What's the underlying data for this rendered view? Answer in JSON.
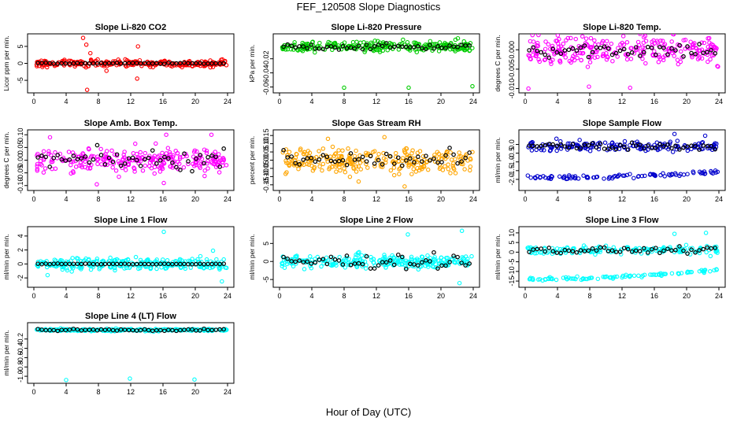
{
  "title": "FEF_120508  Slope Diagnostics",
  "xlabel": "Hour of Day (UTC)",
  "chart_data": [
    {
      "type": "scatter",
      "title": "Slope Li-820 CO2",
      "ylabel": "Licor ppm per min.",
      "xlim": [
        0,
        24
      ],
      "xticks": [
        "0",
        "4",
        "8",
        "12",
        "16",
        "20",
        "24"
      ],
      "ylim": [
        -8,
        8
      ],
      "yticks": [
        -5,
        0,
        5
      ],
      "ytick_labels": [
        "-5",
        "0",
        "5"
      ],
      "color": "#ff0000",
      "spread": 1.0,
      "outliers": [
        [
          6.1,
          7.5
        ],
        [
          6.5,
          5.5
        ],
        [
          7.0,
          3.0
        ],
        [
          12.9,
          5.0
        ],
        [
          6.6,
          -7.8
        ],
        [
          12.8,
          -4.5
        ],
        [
          9.0,
          -2.2
        ]
      ],
      "ref_level": 0,
      "ref_spread": 0.15
    },
    {
      "type": "scatter",
      "title": "Slope Li-820 Pressure",
      "ylabel": "kPa per min.",
      "xlim": [
        0,
        24
      ],
      "xticks": [
        "0",
        "4",
        "8",
        "12",
        "16",
        "20",
        "24"
      ],
      "ylim": [
        -0.065,
        0.012
      ],
      "yticks": [
        -0.06,
        -0.04,
        -0.02
      ],
      "ytick_labels": [
        "-0.06",
        "-0.04",
        "-0.02"
      ],
      "color": "#00cc00",
      "spread": 0.007,
      "outliers": [
        [
          8.0,
          -0.061
        ],
        [
          16.0,
          -0.061
        ],
        [
          23.9,
          -0.059
        ],
        [
          15.3,
          0.007
        ],
        [
          22.1,
          0.009
        ],
        [
          21.8,
          0.007
        ]
      ],
      "ref_level": -0.003,
      "ref_spread": 0.004
    },
    {
      "type": "scatter",
      "title": "Slope Li-820 Temp.",
      "ylabel": "degrees C per min.",
      "xlim": [
        0,
        24
      ],
      "xticks": [
        "0",
        "4",
        "8",
        "12",
        "16",
        "20",
        "24"
      ],
      "ylim": [
        -0.0105,
        0.0035
      ],
      "yticks": [
        -0.01,
        -0.005,
        0.0
      ],
      "ytick_labels": [
        "-0.010",
        "-0.005",
        "0.000"
      ],
      "color": "#ff00ff",
      "spread": 0.0035,
      "outliers": [
        [
          0.4,
          -0.01
        ],
        [
          7.9,
          -0.0095
        ],
        [
          13.0,
          -0.0098
        ],
        [
          5.3,
          0.003
        ],
        [
          22.8,
          0.003
        ]
      ],
      "ref_level": 0,
      "ref_spread": 0.002
    },
    {
      "type": "scatter",
      "title": "Slope Amb. Box Temp.",
      "ylabel": "degrees C per min.",
      "xlim": [
        0,
        24
      ],
      "xticks": [
        "0",
        "4",
        "8",
        "12",
        "16",
        "20",
        "24"
      ],
      "ylim": [
        -0.11,
        0.11
      ],
      "yticks": [
        -0.1,
        -0.05,
        0.0,
        0.05,
        0.1
      ],
      "ytick_labels": [
        "-0.10",
        "-0.05",
        "0.00",
        "0.05",
        "0.10"
      ],
      "color": "#ff00ff",
      "spread": 0.05,
      "outliers": [
        [
          7.8,
          -0.095
        ],
        [
          16.1,
          -0.09
        ],
        [
          22.0,
          0.1
        ],
        [
          16.4,
          0.1
        ],
        [
          2.0,
          0.09
        ]
      ],
      "ref_level": 0,
      "ref_spread": 0.04
    },
    {
      "type": "scatter",
      "title": "Slope Gas Stream RH",
      "ylabel": "percent per min.",
      "xlim": [
        0,
        24
      ],
      "xticks": [
        "0",
        "4",
        "8",
        "12",
        "16",
        "20",
        "24"
      ],
      "ylim": [
        -0.17,
        0.17
      ],
      "yticks": [
        -0.15,
        -0.1,
        -0.05,
        0.0,
        0.05,
        0.1,
        0.15
      ],
      "ytick_labels": [
        "-0.15",
        "-0.10",
        "-0.05",
        "0.00",
        "0.05",
        "0.10",
        "0.15"
      ],
      "color": "#ffa500",
      "spread": 0.07,
      "outliers": [
        [
          15.5,
          -0.16
        ],
        [
          6.0,
          0.13
        ],
        [
          13.0,
          0.14
        ],
        [
          9.8,
          -0.13
        ]
      ],
      "ref_level": 0,
      "ref_spread": 0.06
    },
    {
      "type": "scatter",
      "title": "Slope Sample Flow",
      "ylabel": "ml/min per min.",
      "xlim": [
        0,
        24
      ],
      "xticks": [
        "0",
        "4",
        "8",
        "12",
        "16",
        "20",
        "24"
      ],
      "ylim": [
        -2.5,
        0.7
      ],
      "yticks": [
        -2.0,
        -1.5,
        -1.0,
        -0.5,
        0.0
      ],
      "ytick_labels": [
        "-2.0",
        "-1.5",
        "-1.0",
        "-0.5",
        "0.0"
      ],
      "color": "#0000cc",
      "spread": 0.3,
      "band_level": -1.9,
      "band_to": -1.6,
      "outliers": [
        [
          18.5,
          0.6
        ],
        [
          22.3,
          0.5
        ]
      ],
      "ref_level": -0.1,
      "ref_spread": 0.2
    },
    {
      "type": "scatter",
      "title": "Slope Line 1 Flow",
      "ylabel": "ml/min per min.",
      "xlim": [
        0,
        24
      ],
      "xticks": [
        "0",
        "4",
        "8",
        "12",
        "16",
        "20",
        "24"
      ],
      "ylim": [
        -3,
        5
      ],
      "yticks": [
        -2,
        0,
        2,
        4
      ],
      "ytick_labels": [
        "-2",
        "0",
        "2",
        "4"
      ],
      "color": "#00ffff",
      "spread": 0.8,
      "outliers": [
        [
          16.1,
          4.6
        ],
        [
          23.3,
          -2.5
        ],
        [
          1.7,
          -1.6
        ],
        [
          22.2,
          1.9
        ]
      ],
      "ref_level": 0,
      "ref_spread": 0.05
    },
    {
      "type": "scatter",
      "title": "Slope Line 2 Flow",
      "ylabel": "ml/min per min.",
      "xlim": [
        0,
        24
      ],
      "xticks": [
        "0",
        "4",
        "8",
        "12",
        "16",
        "20",
        "24"
      ],
      "ylim": [
        -6.5,
        9
      ],
      "yticks": [
        -5,
        0,
        5
      ],
      "ytick_labels": [
        "-5",
        "0",
        "5"
      ],
      "color": "#00ffff",
      "spread": 1.8,
      "outliers": [
        [
          22.6,
          8.5
        ],
        [
          15.9,
          7.5
        ],
        [
          22.3,
          -6.0
        ]
      ],
      "ref_level": 0,
      "ref_spread": 2.0
    },
    {
      "type": "scatter",
      "title": "Slope Line 3 Flow",
      "ylabel": "ml/min per min.",
      "xlim": [
        0,
        24
      ],
      "xticks": [
        "0",
        "4",
        "8",
        "12",
        "16",
        "20",
        "24"
      ],
      "ylim": [
        -17,
        12
      ],
      "yticks": [
        -15,
        -10,
        -5,
        0,
        5,
        10
      ],
      "ytick_labels": [
        "-15",
        "-10",
        "-5",
        "0",
        "5",
        "10"
      ],
      "color": "#00ffff",
      "spread": 2.0,
      "band_level": -14,
      "band_to": -9,
      "outliers": [
        [
          22.4,
          10
        ],
        [
          18.5,
          9.5
        ]
      ],
      "ref_level": 1,
      "ref_spread": 1.5
    },
    {
      "type": "scatter",
      "title": "Slope Line 4 (LT) Flow",
      "ylabel": "ml/min per min.",
      "xlim": [
        0,
        24
      ],
      "xticks": [
        "0",
        "4",
        "8",
        "12",
        "16",
        "20",
        "24"
      ],
      "ylim": [
        -1.1,
        0.1
      ],
      "yticks": [
        -1.0,
        -0.8,
        -0.6,
        -0.4,
        -0.2
      ],
      "ytick_labels": [
        "-1.0",
        "-0.8",
        "-0.6",
        "-0.4",
        "-0.2"
      ],
      "color": "#00ffff",
      "spread": 0.025,
      "outliers": [
        [
          4.0,
          -1.08
        ],
        [
          11.9,
          -1.05
        ],
        [
          19.9,
          -1.07
        ]
      ],
      "ref_level": -0.005,
      "ref_spread": 0.02
    }
  ]
}
